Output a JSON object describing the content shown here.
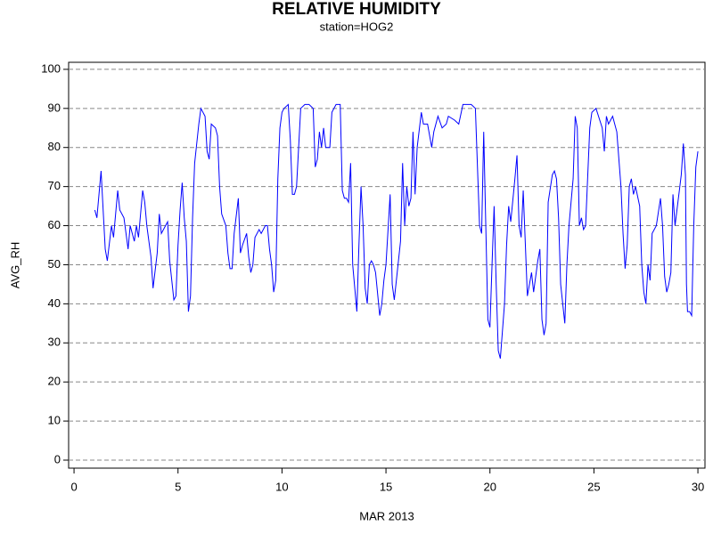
{
  "chart_data": {
    "type": "line",
    "title": "RELATIVE HUMIDITY",
    "subtitle": "station=HOG2",
    "x_label": "MAR 2013",
    "y_label": "AVG_RH",
    "xlim": [
      -0.26,
      30.34
    ],
    "ylim": [
      -2.05,
      101.8
    ],
    "xticks": [
      0,
      5,
      10,
      15,
      20,
      25,
      30
    ],
    "yticks": [
      0,
      10,
      20,
      30,
      40,
      50,
      60,
      70,
      80,
      90,
      100
    ],
    "grid": true,
    "x": [
      1.0,
      1.1,
      1.3,
      1.5,
      1.6,
      1.8,
      1.9,
      2.1,
      2.2,
      2.4,
      2.6,
      2.7,
      2.9,
      3.0,
      3.1,
      3.3,
      3.4,
      3.5,
      3.7,
      3.8,
      4.0,
      4.1,
      4.2,
      4.5,
      4.6,
      4.8,
      4.9,
      5.0,
      5.1,
      5.2,
      5.3,
      5.4,
      5.5,
      5.6,
      5.7,
      5.8,
      6.0,
      6.1,
      6.3,
      6.4,
      6.5,
      6.6,
      6.8,
      6.9,
      7.0,
      7.1,
      7.3,
      7.4,
      7.5,
      7.6,
      7.7,
      7.9,
      8.0,
      8.1,
      8.3,
      8.4,
      8.5,
      8.6,
      8.7,
      8.9,
      9.0,
      9.2,
      9.3,
      9.4,
      9.5,
      9.6,
      9.7,
      9.8,
      9.9,
      10.0,
      10.1,
      10.3,
      10.4,
      10.5,
      10.6,
      10.7,
      10.9,
      11.1,
      11.3,
      11.5,
      11.6,
      11.7,
      11.8,
      11.9,
      12.0,
      12.1,
      12.3,
      12.4,
      12.6,
      12.8,
      12.9,
      13.0,
      13.1,
      13.2,
      13.3,
      13.4,
      13.6,
      13.7,
      13.8,
      13.9,
      14.0,
      14.1,
      14.2,
      14.3,
      14.4,
      14.5,
      14.7,
      14.8,
      14.9,
      15.0,
      15.2,
      15.3,
      15.4,
      15.7,
      15.8,
      15.9,
      16.0,
      16.1,
      16.2,
      16.3,
      16.4,
      16.5,
      16.7,
      16.8,
      17.0,
      17.2,
      17.3,
      17.5,
      17.7,
      17.9,
      18.0,
      18.3,
      18.5,
      18.7,
      18.9,
      19.1,
      19.3,
      19.5,
      19.6,
      19.7,
      19.9,
      20.0,
      20.1,
      20.2,
      20.3,
      20.4,
      20.5,
      20.7,
      20.8,
      20.9,
      21.0,
      21.2,
      21.3,
      21.4,
      21.5,
      21.6,
      21.8,
      22.0,
      22.1,
      22.3,
      22.4,
      22.5,
      22.6,
      22.7,
      22.8,
      23.0,
      23.1,
      23.2,
      23.3,
      23.4,
      23.6,
      23.7,
      23.8,
      24.0,
      24.1,
      24.2,
      24.3,
      24.4,
      24.5,
      24.6,
      24.8,
      24.9,
      25.1,
      25.4,
      25.5,
      25.6,
      25.7,
      25.9,
      26.1,
      26.3,
      26.4,
      26.5,
      26.6,
      26.7,
      26.8,
      26.9,
      27.0,
      27.2,
      27.3,
      27.4,
      27.5,
      27.6,
      27.7,
      27.8,
      28.0,
      28.2,
      28.3,
      28.4,
      28.5,
      28.6,
      28.7,
      28.8,
      28.9,
      29.2,
      29.3,
      29.4,
      29.45,
      29.5,
      29.6,
      29.7,
      29.8,
      29.9,
      30.0
    ],
    "series": [
      {
        "name": "AVG_RH",
        "color": "#0000ff",
        "values": [
          64,
          62,
          74,
          54,
          51,
          60,
          57,
          69,
          64,
          62,
          54,
          60,
          56,
          60,
          57,
          69,
          66,
          60,
          52,
          44,
          53,
          63,
          58,
          61,
          51,
          41,
          42,
          55,
          64,
          71,
          62,
          56,
          38,
          42,
          62,
          76,
          86,
          90,
          88,
          79,
          77,
          86,
          85,
          83,
          70,
          63,
          60,
          53,
          49,
          49,
          58,
          67,
          53,
          55,
          58,
          52,
          48,
          50,
          57,
          59,
          58,
          60,
          60,
          54,
          50,
          43,
          46,
          72,
          85,
          89,
          90,
          91,
          82,
          68,
          68,
          70,
          90,
          91,
          91,
          90,
          75,
          77,
          84,
          80,
          85,
          80,
          80,
          89,
          91,
          91,
          69,
          67,
          67,
          66,
          76,
          50,
          38,
          55,
          70,
          60,
          44,
          40,
          50,
          51,
          50,
          48,
          37,
          40,
          46,
          50,
          68,
          45,
          41,
          56,
          76,
          60,
          70,
          65,
          67,
          84,
          68,
          80,
          89,
          86,
          86,
          80,
          84,
          88,
          85,
          86,
          88,
          87,
          86,
          91,
          91,
          91,
          90,
          60,
          58,
          84,
          36,
          34,
          50,
          65,
          45,
          28,
          26,
          40,
          55,
          65,
          61,
          72,
          78,
          60,
          57,
          69,
          42,
          48,
          43,
          51,
          54,
          36,
          32,
          35,
          66,
          73,
          74,
          72,
          62,
          45,
          35,
          50,
          60,
          72,
          88,
          85,
          60,
          62,
          59,
          60,
          85,
          89,
          90,
          85,
          79,
          88,
          86,
          88,
          84,
          70,
          58,
          49,
          55,
          70,
          72,
          68,
          70,
          65,
          50,
          43,
          40,
          50,
          46,
          58,
          60,
          67,
          60,
          47,
          43,
          45,
          48,
          68,
          60,
          73,
          81,
          73,
          45,
          38,
          38,
          37,
          60,
          75,
          79
        ]
      }
    ]
  }
}
